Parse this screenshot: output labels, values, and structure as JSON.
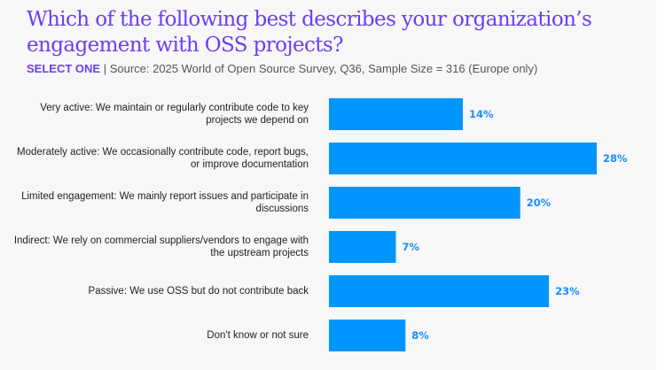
{
  "chart_data": {
    "type": "bar",
    "orientation": "horizontal",
    "title": "Which of the following best describes your organization’s engagement with OSS projects?",
    "subtitle_tag": "SELECT ONE",
    "subtitle_sep": " | ",
    "subtitle": "Source: 2025 World of Open Source Survey, Q36, Sample Size = 316 (Europe only)",
    "categories": [
      "Very active: We maintain or regularly contribute code to key projects we depend on",
      "Moderately active: We occasionally contribute code, report bugs, or improve documentation",
      "Limited engagement: We mainly report issues and participate in discussions",
      "Indirect: We rely on commercial suppliers/vendors to engage with the upstream projects",
      "Passive: We use OSS but do not contribute back",
      "Don't know or not sure"
    ],
    "values": [
      14,
      28,
      20,
      7,
      23,
      8
    ],
    "value_labels": [
      "14%",
      "28%",
      "20%",
      "7%",
      "23%",
      "8%"
    ],
    "xlabel": "",
    "ylabel": "",
    "xlim": [
      0,
      28
    ],
    "grid": false,
    "bar_color": "#0095ff",
    "label_color": "#1a8cff",
    "title_color": "#6a3ff0"
  }
}
